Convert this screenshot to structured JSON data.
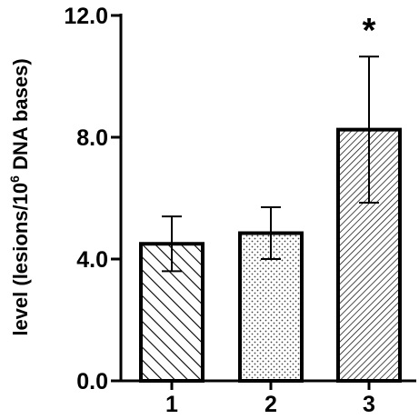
{
  "chart_data": {
    "type": "bar",
    "title": "",
    "xlabel": "",
    "ylabel": {
      "prefix": "level (lesions/10",
      "sup": "6",
      "suffix": " DNA bases)"
    },
    "categories": [
      "1",
      "2",
      "3"
    ],
    "values": [
      4.5,
      4.85,
      8.25
    ],
    "errors": [
      0.9,
      0.85,
      2.4
    ],
    "patterns": [
      "diagonal-back",
      "dotted",
      "diagonal-dense"
    ],
    "annotations": [
      "",
      "",
      "*"
    ],
    "ylim": [
      0,
      12
    ],
    "yticks": [
      "0.0",
      "4.0",
      "8.0",
      "12.0"
    ],
    "ytick_values": [
      0,
      4,
      8,
      12
    ],
    "grid": false,
    "colors": {
      "bar_stroke": "#000000",
      "hatch": "#000000",
      "background": "#ffffff"
    }
  }
}
